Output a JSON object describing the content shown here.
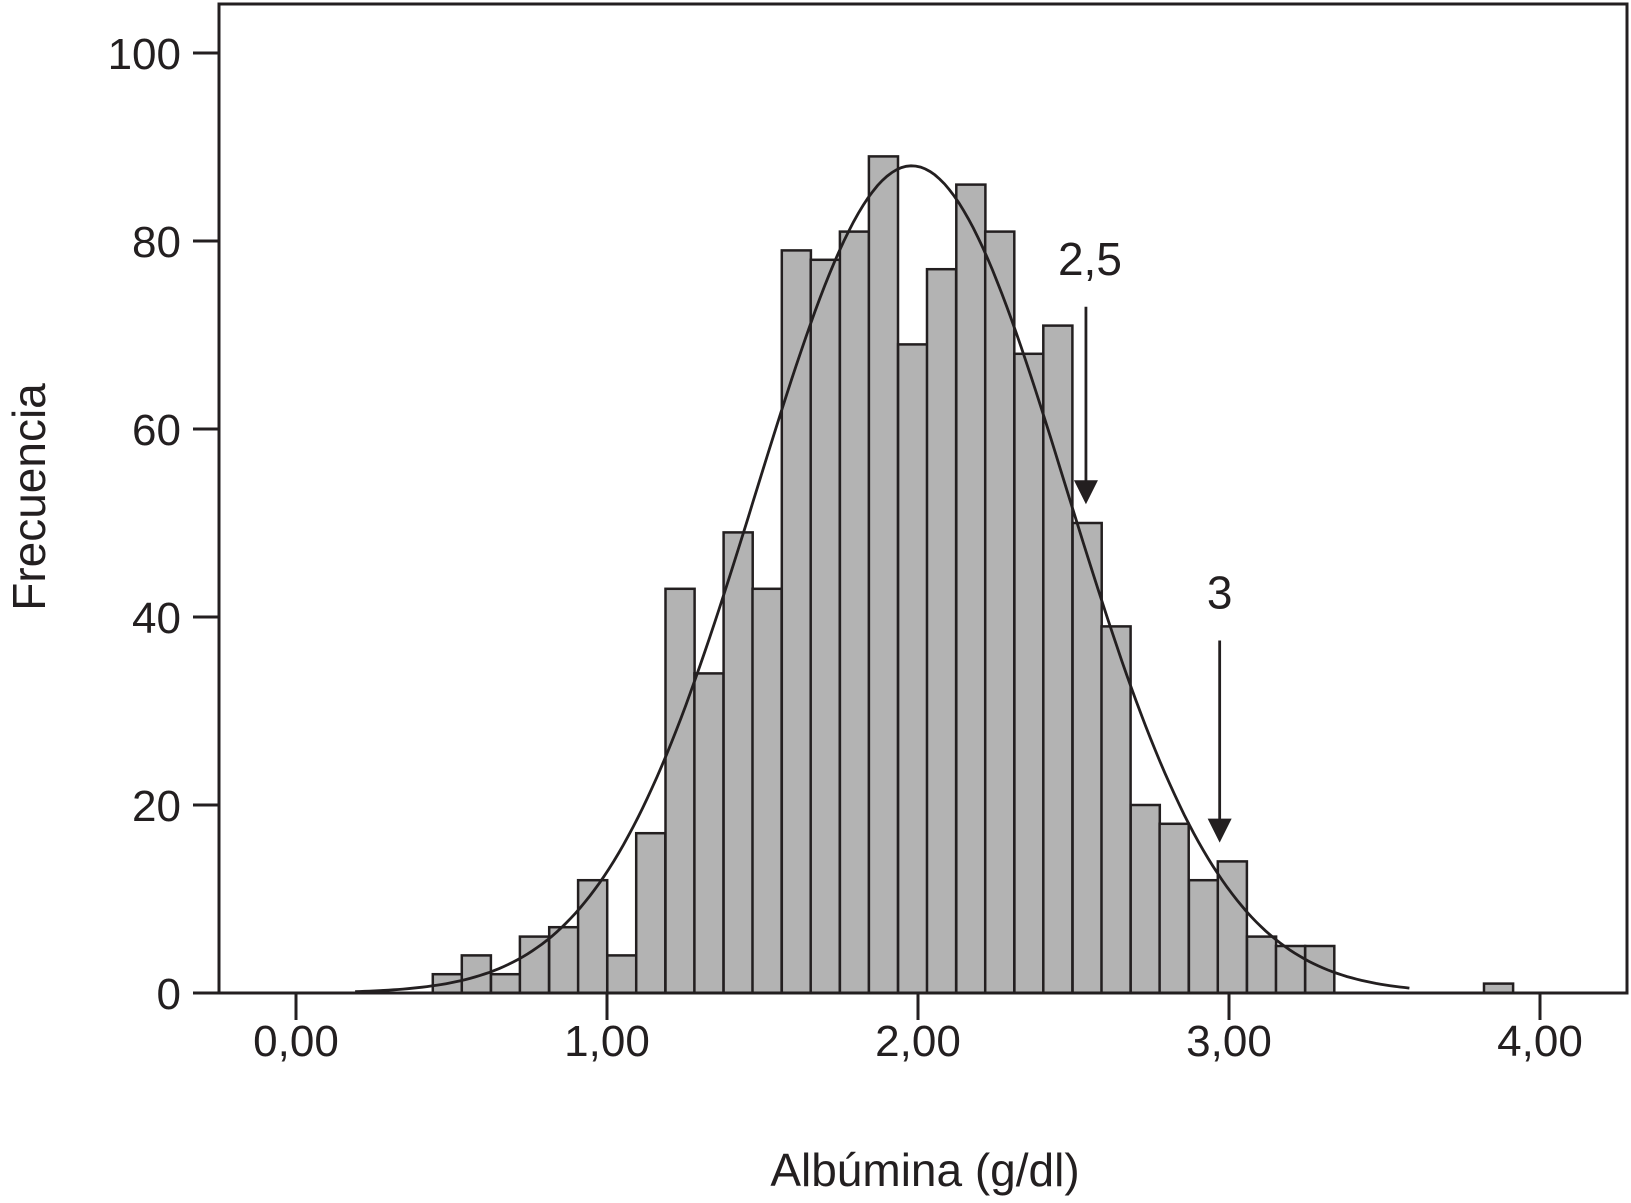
{
  "chart_data": {
    "type": "bar",
    "subtype": "histogram",
    "title": "",
    "xlabel": "Albúmina (g/dl)",
    "ylabel": "Frecuencia",
    "xlim": [
      -0.24,
      4.22
    ],
    "ylim": [
      0,
      105
    ],
    "bin_width": 0.0935,
    "xticks": [
      {
        "value": 0,
        "label": "0,00"
      },
      {
        "value": 1,
        "label": "1,00"
      },
      {
        "value": 2,
        "label": "2,00"
      },
      {
        "value": 3,
        "label": "3,00"
      },
      {
        "value": 4,
        "label": "4,00"
      }
    ],
    "yticks": [
      {
        "value": 0,
        "label": "0"
      },
      {
        "value": 20,
        "label": "20"
      },
      {
        "value": 40,
        "label": "40"
      },
      {
        "value": 60,
        "label": "60"
      },
      {
        "value": 80,
        "label": "80"
      },
      {
        "value": 100,
        "label": "100"
      }
    ],
    "bins": [
      {
        "x0": 0.44,
        "count": 2
      },
      {
        "x0": 0.533,
        "count": 4
      },
      {
        "x0": 0.627,
        "count": 2
      },
      {
        "x0": 0.72,
        "count": 6
      },
      {
        "x0": 0.814,
        "count": 7
      },
      {
        "x0": 0.907,
        "count": 12
      },
      {
        "x0": 1.001,
        "count": 4
      },
      {
        "x0": 1.094,
        "count": 17
      },
      {
        "x0": 1.188,
        "count": 43
      },
      {
        "x0": 1.281,
        "count": 34
      },
      {
        "x0": 1.375,
        "count": 49
      },
      {
        "x0": 1.468,
        "count": 43
      },
      {
        "x0": 1.562,
        "count": 79
      },
      {
        "x0": 1.655,
        "count": 78
      },
      {
        "x0": 1.749,
        "count": 81
      },
      {
        "x0": 1.842,
        "count": 89
      },
      {
        "x0": 1.936,
        "count": 69
      },
      {
        "x0": 2.029,
        "count": 77
      },
      {
        "x0": 2.123,
        "count": 86
      },
      {
        "x0": 2.216,
        "count": 81
      },
      {
        "x0": 2.31,
        "count": 68
      },
      {
        "x0": 2.403,
        "count": 71
      },
      {
        "x0": 2.497,
        "count": 50
      },
      {
        "x0": 2.59,
        "count": 39
      },
      {
        "x0": 2.684,
        "count": 20
      },
      {
        "x0": 2.777,
        "count": 18
      },
      {
        "x0": 2.871,
        "count": 12
      },
      {
        "x0": 2.964,
        "count": 14
      },
      {
        "x0": 3.058,
        "count": 6
      },
      {
        "x0": 3.151,
        "count": 5
      },
      {
        "x0": 3.245,
        "count": 5
      },
      {
        "x0": 3.82,
        "count": 1
      }
    ],
    "normal_curve": {
      "mean": 1.98,
      "sd": 0.5,
      "peak": 88,
      "x_start": 0.19,
      "x_end": 3.58
    },
    "annotations": [
      {
        "label": "2,5",
        "x": 2.54,
        "arrow_from_y": 73,
        "arrow_to_y": 52
      },
      {
        "label": "3",
        "x": 2.97,
        "arrow_from_y": 37.5,
        "arrow_to_y": 16
      }
    ],
    "grid": false,
    "legend": "none",
    "colors": {
      "bar_fill": "#b3b3b3",
      "ink": "#231f20"
    }
  }
}
